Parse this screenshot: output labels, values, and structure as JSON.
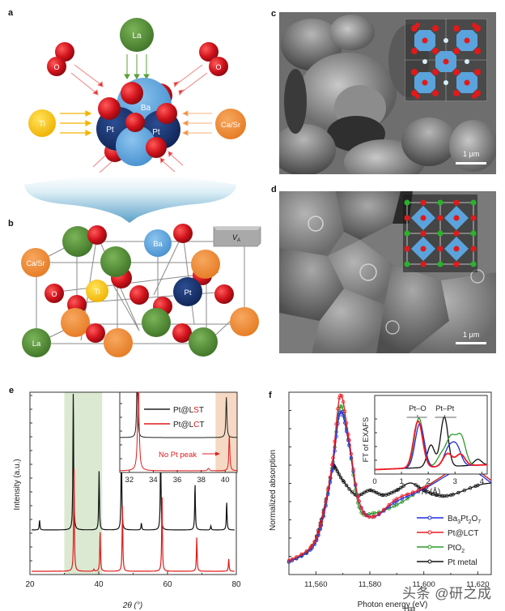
{
  "figure": {
    "panels": {
      "a": {
        "letter": "a",
        "atoms": {
          "top": "La",
          "left_oxygen": "O",
          "right_oxygen": "O",
          "left": "Ti",
          "right": "Ca/Sr",
          "center_ba": "Ba",
          "center_pt_left": "Pt",
          "center_pt_right": "Pt"
        }
      },
      "b": {
        "letter": "b",
        "atoms": {
          "ca_sr": "Ca/Sr",
          "ba": "Ba",
          "o": "O",
          "ti": "Ti",
          "pt": "Pt",
          "la": "La"
        },
        "vacancy_label": "V",
        "vacancy_sub": "A"
      },
      "c": {
        "letter": "c",
        "scale_bar": "1 μm"
      },
      "d": {
        "letter": "d",
        "scale_bar": "1 μm"
      },
      "e": {
        "letter": "e"
      },
      "f": {
        "letter": "f"
      }
    },
    "colors": {
      "oxygen": "#d0121b",
      "lanthanum": "#4e8a2e",
      "barium": "#5aa3dc",
      "platinum": "#1a3570",
      "titanium": "#f5c211",
      "calcium_strontium": "#ef8a30",
      "vacancy_box": "#a9a9a9"
    },
    "watermark": "头条 @研之成理"
  },
  "chart_data": [
    {
      "panel": "e",
      "type": "line",
      "title": "",
      "xlabel": "2θ (°)",
      "ylabel": "Intensity (a.u.)",
      "xlim": [
        20,
        80
      ],
      "xticks": [
        "20",
        "40",
        "60",
        "80"
      ],
      "highlight_region": {
        "x": [
          30,
          41
        ],
        "color": "#dbe9d2"
      },
      "series": [
        {
          "name": "Pt@LST",
          "color": "#111111",
          "peaks_2theta": [
            22.8,
            32.6,
            40.1,
            46.6,
            52.4,
            58.0,
            68.0,
            72.6,
            77.2
          ],
          "peaks_rel_height": [
            0.07,
            1.0,
            0.42,
            0.68,
            0.05,
            0.62,
            0.33,
            0.03,
            0.2
          ]
        },
        {
          "name": "Pt@LCT",
          "color": "#e01b1b",
          "peaks_2theta": [
            32.8,
            38.6,
            40.4,
            46.9,
            58.4,
            68.5,
            77.8
          ],
          "peaks_rel_height": [
            1.0,
            0.02,
            0.38,
            0.62,
            0.72,
            0.32,
            0.12
          ]
        }
      ],
      "inset": {
        "xlim": [
          31.2,
          41
        ],
        "xticks": [
          "32",
          "34",
          "36",
          "38",
          "40"
        ],
        "legend": [
          "Pt@LST",
          "Pt@LCT"
        ],
        "legend_highlight": {
          "Pt@LST": "S",
          "Pt@LCT": "C"
        },
        "annotation": "No Pt peak",
        "highlight_region": {
          "x": [
            39.2,
            41
          ],
          "color": "#f5d9c4"
        }
      }
    },
    {
      "panel": "f",
      "type": "line",
      "title": "",
      "xlabel": "Photon energy (eV)",
      "ylabel": "Normalized absorption",
      "xlim": [
        11550,
        11625
      ],
      "xticks": [
        "11,560",
        "11,580",
        "11,600",
        "11,620"
      ],
      "series": [
        {
          "name": "Ba3Pt2O7",
          "label_html": "Ba₃Pt₂O₇",
          "color": "#1f2fe0",
          "marker": "square",
          "x": [
            11550,
            11558,
            11562,
            11566,
            11569,
            11572,
            11576,
            11581,
            11590,
            11600,
            11610,
            11615,
            11620,
            11625
          ],
          "y": [
            0.05,
            0.15,
            0.35,
            0.8,
            1.28,
            1.05,
            0.55,
            0.42,
            0.55,
            0.65,
            0.78,
            0.82,
            0.78,
            0.7
          ]
        },
        {
          "name": "Pt@LCT",
          "label_html": "Pt@LCT",
          "color": "#ee1b24",
          "marker": "circle",
          "x": [
            11550,
            11558,
            11562,
            11566,
            11569,
            11572,
            11576,
            11581,
            11590,
            11600,
            11610,
            11615,
            11620,
            11625
          ],
          "y": [
            0.06,
            0.17,
            0.38,
            0.85,
            1.42,
            1.1,
            0.55,
            0.42,
            0.57,
            0.66,
            0.8,
            0.85,
            0.8,
            0.72
          ]
        },
        {
          "name": "PtO2",
          "label_html": "PtO₂",
          "color": "#2a9a2a",
          "marker": "triangle",
          "x": [
            11550,
            11558,
            11562,
            11566,
            11569,
            11572,
            11576,
            11581,
            11590,
            11600,
            11610,
            11615,
            11620,
            11625
          ],
          "y": [
            0.05,
            0.16,
            0.36,
            0.82,
            1.33,
            1.06,
            0.5,
            0.45,
            0.52,
            0.66,
            0.8,
            0.86,
            0.8,
            0.72
          ]
        },
        {
          "name": "Pt metal",
          "label_html": "Pt metal",
          "color": "#111111",
          "marker": "diamond",
          "x": [
            11550,
            11558,
            11562,
            11566,
            11567,
            11570,
            11575,
            11580,
            11585,
            11590,
            11595,
            11600,
            11605,
            11610,
            11620,
            11625
          ],
          "y": [
            0.05,
            0.16,
            0.4,
            0.8,
            0.83,
            0.72,
            0.6,
            0.64,
            0.6,
            0.64,
            0.7,
            0.64,
            0.6,
            0.6,
            0.68,
            0.7
          ]
        }
      ],
      "inset": {
        "xlabel": "R (Å)",
        "ylabel": "FT of EXAFS",
        "xlim": [
          0,
          4.2
        ],
        "xticks": [
          "0",
          "1",
          "2",
          "3",
          "4"
        ],
        "annotations": [
          "Pt–O",
          "Pt–Pt"
        ],
        "series": [
          {
            "name": "Ba3Pt2O7",
            "color": "#1f2fe0",
            "peaks_R": [
              1.68,
              2.75,
              3.05
            ],
            "peaks_h": [
              0.75,
              0.28,
              0.33
            ]
          },
          {
            "name": "Pt@LCT",
            "color": "#ee1b24",
            "peaks_R": [
              1.62,
              2.72,
              3.2
            ],
            "peaks_h": [
              0.8,
              0.22,
              0.2
            ]
          },
          {
            "name": "PtO2",
            "color": "#2a9a2a",
            "peaks_R": [
              1.65,
              2.5,
              2.85,
              3.22
            ],
            "peaks_h": [
              0.85,
              0.2,
              0.47,
              0.5
            ]
          },
          {
            "name": "Pt metal",
            "color": "#111111",
            "peaks_R": [
              2.1,
              2.6,
              3.85
            ],
            "peaks_h": [
              0.38,
              0.85,
              0.1
            ]
          }
        ]
      }
    }
  ]
}
